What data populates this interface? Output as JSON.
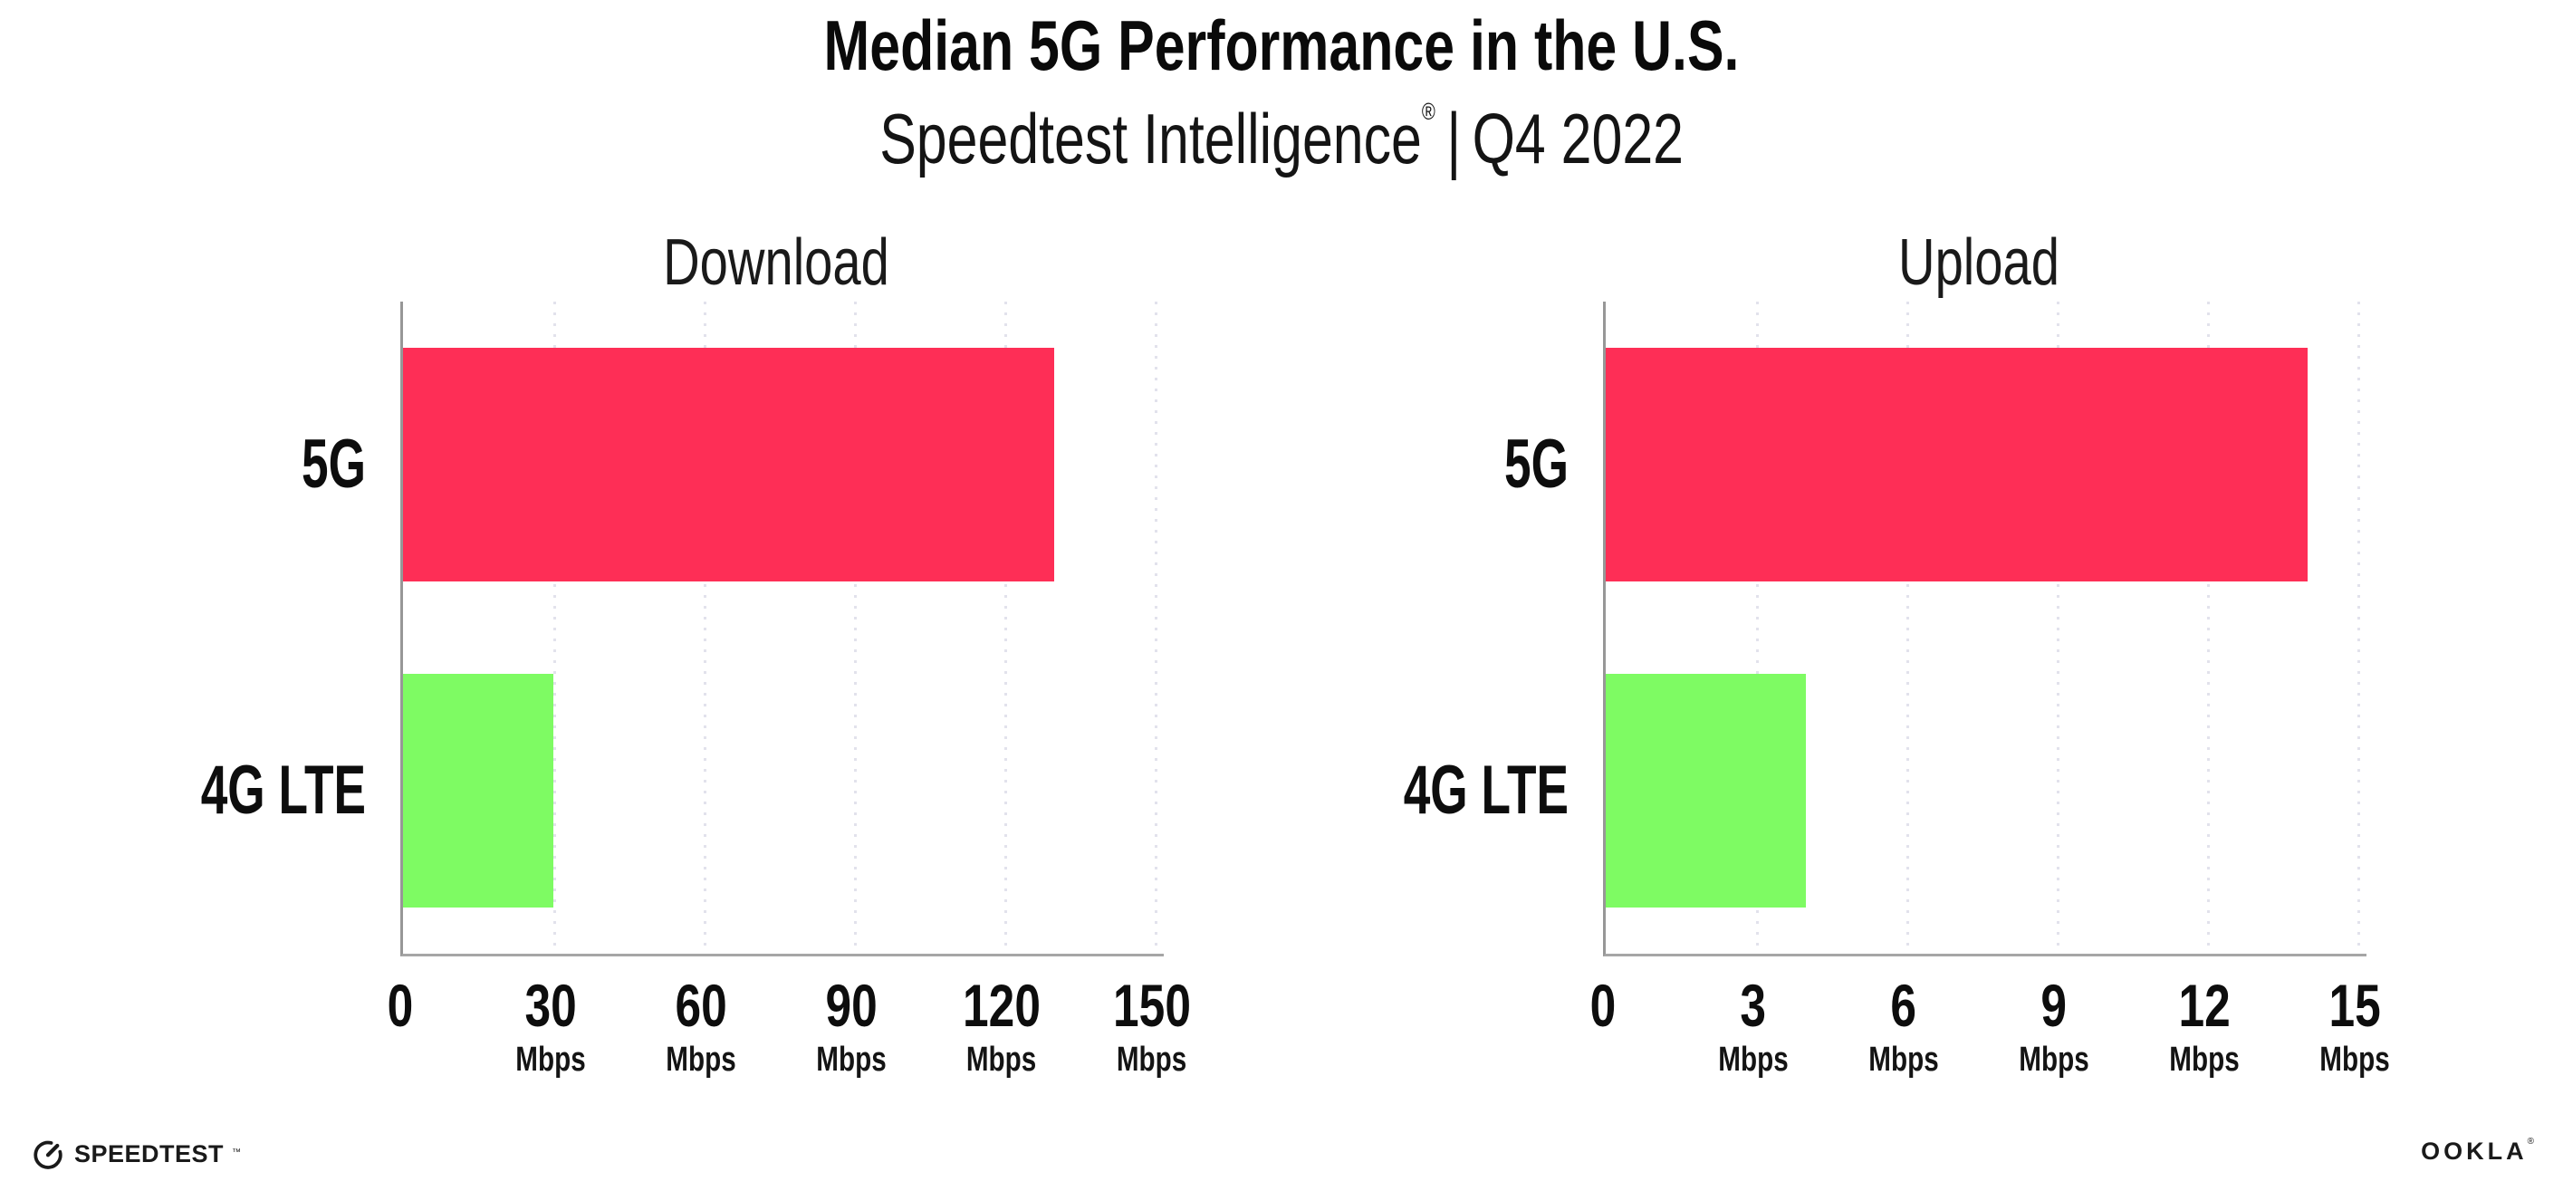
{
  "title": "Median 5G Performance in the U.S.",
  "subtitle": {
    "brand": "Speedtest Intelligence",
    "registered_mark": "®",
    "separator": "|",
    "period": "Q4 2022"
  },
  "colors": {
    "bar_5g": "#fe2e56",
    "bar_4g_lte": "#7efb63",
    "gridline": "#e2e2ec",
    "axis": "#9b9b9b",
    "text": "#111111",
    "background": "#ffffff"
  },
  "chart_data": [
    {
      "type": "bar",
      "orientation": "horizontal",
      "title": "Download",
      "categories": [
        "5G",
        "4G LTE"
      ],
      "values": [
        130,
        30
      ],
      "unit": "Mbps",
      "xlim": [
        0,
        150
      ],
      "xticks": [
        0,
        30,
        60,
        90,
        120,
        150
      ],
      "tick_unit_label": "Mbps",
      "grid": "vertical-dotted",
      "legend": "none",
      "bar_colors": [
        "#fe2e56",
        "#7efb63"
      ]
    },
    {
      "type": "bar",
      "orientation": "horizontal",
      "title": "Upload",
      "categories": [
        "5G",
        "4G LTE"
      ],
      "values": [
        14,
        4
      ],
      "unit": "Mbps",
      "xlim": [
        0,
        15
      ],
      "xticks": [
        0,
        3,
        6,
        9,
        12,
        15
      ],
      "tick_unit_label": "Mbps",
      "grid": "vertical-dotted",
      "legend": "none",
      "bar_colors": [
        "#fe2e56",
        "#7efb63"
      ]
    }
  ],
  "footer": {
    "speedtest_logo_text": "SPEEDTEST",
    "speedtest_trademark": "™",
    "ookla_logo_text": "OOKLA",
    "ookla_registered_mark": "®"
  }
}
